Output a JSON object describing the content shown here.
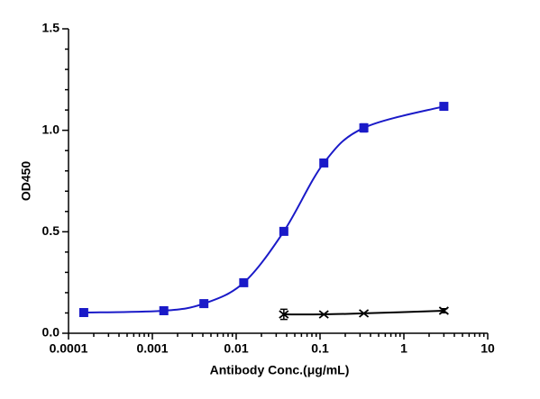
{
  "chart_data": {
    "type": "scatter",
    "x_label": "Antibody Conc.(μg/mL)",
    "y_label": "OD450",
    "xscale": "log",
    "xlim": [
      0.0001,
      10
    ],
    "xticks": [
      0.0001,
      0.001,
      0.01,
      0.1,
      1,
      10
    ],
    "ylim": [
      0,
      1.5
    ],
    "yticks": [
      {
        "value": 0,
        "label": "0.0"
      },
      {
        "value": 0.5,
        "label": "0.5"
      },
      {
        "value": 1,
        "label": "1.0"
      },
      {
        "value": 1.5,
        "label": "1.5"
      }
    ],
    "series": [
      {
        "color": "#1a1ac8",
        "marker": "square",
        "x": [
          0.000152,
          0.00137,
          0.00412,
          0.0123,
          0.037,
          0.111,
          0.333,
          3
        ],
        "values": [
          0.102,
          0.111,
          0.146,
          0.249,
          0.502,
          0.839,
          1.012,
          1.118
        ],
        "errors": [
          null,
          null,
          null,
          null,
          null,
          null,
          0.02,
          null
        ]
      },
      {
        "color": "#000000",
        "marker": "x",
        "x": [
          0.037,
          0.111,
          0.333,
          3
        ],
        "values": [
          0.093,
          0.093,
          0.098,
          0.111
        ],
        "errors": [
          0.025,
          null,
          null,
          0.01
        ]
      }
    ]
  }
}
